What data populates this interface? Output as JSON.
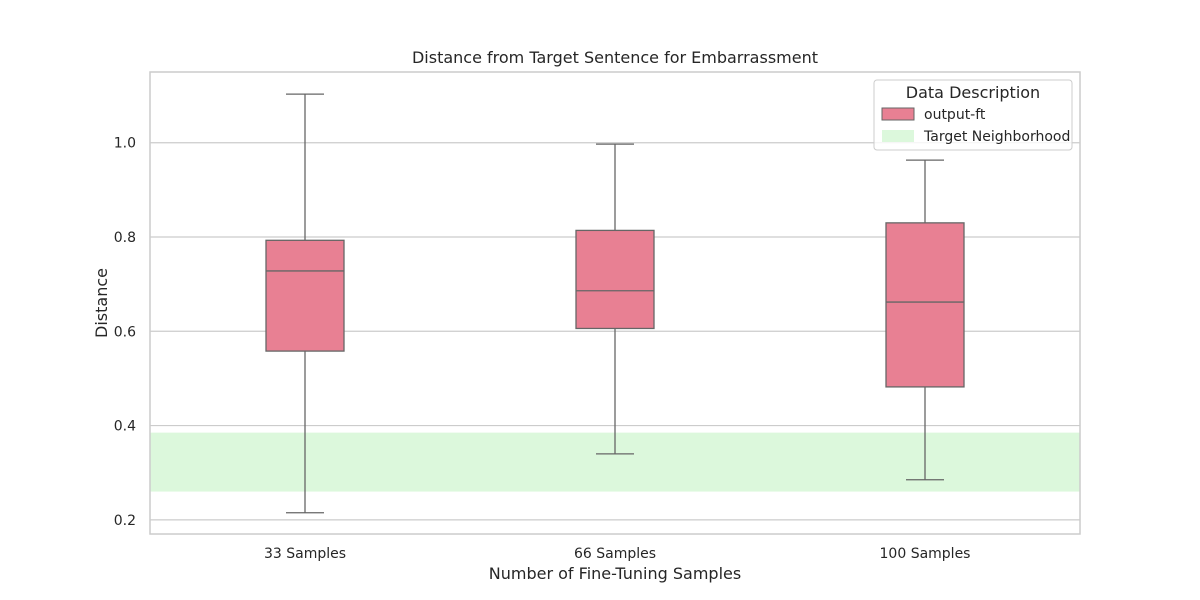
{
  "chart_data": {
    "type": "box",
    "title": "Distance from Target Sentence for Embarrassment",
    "xlabel": "Number of Fine-Tuning Samples",
    "ylabel": "Distance",
    "categories": [
      "33 Samples",
      "66 Samples",
      "100 Samples"
    ],
    "ylim": [
      0.17,
      1.15
    ],
    "yticks": [
      0.2,
      0.4,
      0.6,
      0.8,
      1.0
    ],
    "ytick_labels": [
      "0.2",
      "0.4",
      "0.6",
      "0.8",
      "1.0"
    ],
    "grid": "horizontal",
    "legend": {
      "title": "Data Description",
      "placement": "top-right",
      "entries": [
        "output-ft",
        "Target Neighborhood"
      ]
    },
    "series": [
      {
        "name": "output-ft",
        "color": "#e88093",
        "boxes": [
          {
            "category": "33 Samples",
            "min": 0.215,
            "q1": 0.558,
            "median": 0.728,
            "q3": 0.793,
            "max": 1.103
          },
          {
            "category": "66 Samples",
            "min": 0.34,
            "q1": 0.606,
            "median": 0.686,
            "q3": 0.814,
            "max": 0.997
          },
          {
            "category": "100 Samples",
            "min": 0.285,
            "q1": 0.482,
            "median": 0.662,
            "q3": 0.83,
            "max": 0.963
          }
        ]
      }
    ],
    "band": {
      "name": "Target Neighborhood",
      "low": 0.26,
      "high": 0.385,
      "color": "#dcf8dc"
    }
  }
}
